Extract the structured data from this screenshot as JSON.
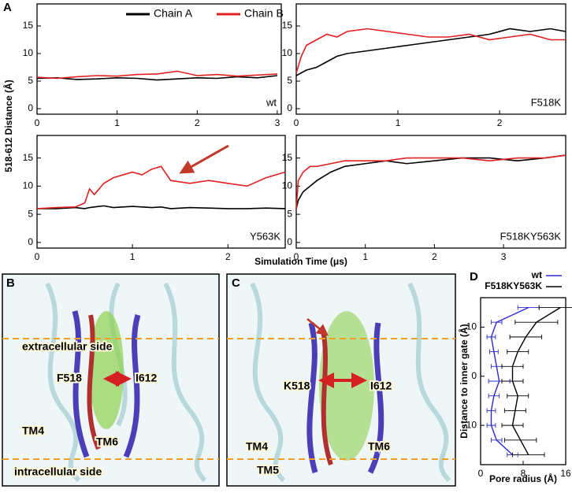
{
  "figure": {
    "label": "A",
    "ylabel": "518-612 Distance (Å)",
    "xlabel": "Simulation Time (μs)"
  },
  "chart_data": [
    {
      "type": "line",
      "annotation": "wt",
      "x": [
        0,
        0.25,
        0.5,
        0.75,
        1,
        1.25,
        1.5,
        1.75,
        2,
        2.25,
        2.5,
        2.75,
        3
      ],
      "series": [
        {
          "name": "Chain A",
          "color": "#000000",
          "values": [
            5.5,
            5.6,
            5.3,
            5.4,
            5.6,
            5.5,
            5.2,
            5.4,
            5.6,
            5.5,
            5.8,
            5.6,
            6.0
          ]
        },
        {
          "name": "Chain B",
          "color": "#e02020",
          "values": [
            5.7,
            5.5,
            5.8,
            6.0,
            5.9,
            6.2,
            6.3,
            6.8,
            6.0,
            6.2,
            5.9,
            6.1,
            6.3
          ]
        }
      ],
      "xlim": [
        0,
        3.05
      ],
      "xticks": [
        0,
        1,
        2,
        3
      ],
      "ylim": [
        -1,
        19
      ],
      "yticks": [
        0,
        5,
        10,
        15
      ]
    },
    {
      "type": "line",
      "annotation": "F518K",
      "x": [
        0,
        0.05,
        0.1,
        0.2,
        0.3,
        0.4,
        0.5,
        0.7,
        0.9,
        1.1,
        1.3,
        1.5,
        1.7,
        1.9,
        2.1,
        2.3,
        2.5,
        2.65
      ],
      "series": [
        {
          "color": "#000000",
          "values": [
            6.0,
            6.5,
            7.0,
            7.5,
            8.5,
            9.5,
            10.0,
            10.5,
            11.0,
            11.5,
            12.0,
            12.5,
            13.0,
            13.5,
            14.5,
            14.0,
            14.5,
            14.0
          ]
        },
        {
          "color": "#e02020",
          "values": [
            6.5,
            9.5,
            11.5,
            12.5,
            13.5,
            13.0,
            14.0,
            14.5,
            14.0,
            13.5,
            13.0,
            13.0,
            13.5,
            12.5,
            13.0,
            13.5,
            12.5,
            12.5
          ]
        }
      ],
      "xlim": [
        0,
        2.65
      ],
      "xticks": [
        0,
        1,
        2
      ],
      "ylim": [
        -1,
        19
      ],
      "yticks": [
        0,
        5,
        10,
        15
      ]
    },
    {
      "type": "line",
      "annotation": "Y563K",
      "x": [
        0,
        0.2,
        0.4,
        0.5,
        0.55,
        0.6,
        0.7,
        0.8,
        0.9,
        1.0,
        1.1,
        1.2,
        1.3,
        1.4,
        1.6,
        1.8,
        2.0,
        2.2,
        2.4,
        2.6
      ],
      "series": [
        {
          "color": "#000000",
          "values": [
            6,
            6,
            6.2,
            6.0,
            6.2,
            6.3,
            6.5,
            6.2,
            6.3,
            6.4,
            6.3,
            6.2,
            6.3,
            6.0,
            6.2,
            6.1,
            6.0,
            6.0,
            6.1,
            6.0
          ]
        },
        {
          "color": "#e02020",
          "values": [
            6,
            6.2,
            6.3,
            7.0,
            9.5,
            8.5,
            10.5,
            11.5,
            12.0,
            12.5,
            12.0,
            13.0,
            13.5,
            11.0,
            10.5,
            11.0,
            10.5,
            10.0,
            11.5,
            12.5
          ]
        }
      ],
      "xlim": [
        0,
        2.6
      ],
      "xticks": [
        0,
        1,
        2
      ],
      "ylim": [
        -1,
        19
      ],
      "yticks": [
        0,
        5,
        10,
        15
      ]
    },
    {
      "type": "line",
      "annotation": "F518KY563K",
      "x": [
        0,
        0.03,
        0.1,
        0.2,
        0.3,
        0.5,
        0.7,
        1.0,
        1.3,
        1.6,
        2.0,
        2.4,
        2.8,
        3.2,
        3.6,
        3.9
      ],
      "series": [
        {
          "color": "#000000",
          "values": [
            6,
            7.5,
            9,
            10,
            11,
            12.5,
            13.5,
            14,
            14.5,
            14,
            14.5,
            15,
            15,
            14.5,
            15,
            15.5
          ]
        },
        {
          "color": "#e02020",
          "values": [
            6,
            11,
            12.5,
            13.5,
            13.5,
            14,
            14.5,
            14.5,
            14.5,
            15,
            15,
            15,
            14.5,
            15,
            15,
            15.5
          ]
        }
      ],
      "xlim": [
        0,
        3.9
      ],
      "xticks": [
        0,
        1,
        2,
        3
      ],
      "ylim": [
        -1,
        19
      ],
      "yticks": [
        0,
        5,
        10,
        15
      ]
    },
    {
      "type": "profile",
      "label": "D",
      "xlabel": "Pore radius (Å)",
      "ylabel": "Distance to inner gate (Å)",
      "y": [
        -16,
        -13,
        -10,
        -7,
        -4,
        -1,
        2,
        5,
        8,
        11,
        14
      ],
      "series": [
        {
          "name": "wt",
          "color": "#2a2ad0",
          "values": [
            6,
            3,
            2,
            2,
            2.5,
            3.5,
            3,
            2.5,
            2,
            3,
            9
          ],
          "errors": [
            1,
            1,
            0.8,
            0.8,
            1,
            2,
            1,
            0.8,
            0.8,
            1,
            2
          ]
        },
        {
          "name": "F518KY563K",
          "color": "#000000",
          "values": [
            9,
            7.5,
            6,
            6.5,
            7,
            6,
            6,
            7,
            8.5,
            10.5,
            15
          ],
          "errors": [
            3,
            3,
            2,
            2,
            2,
            2,
            2,
            2,
            3,
            4,
            4
          ]
        }
      ],
      "xlim": [
        0,
        16
      ],
      "xticks": [
        0,
        8,
        16
      ],
      "ylim": [
        -18,
        16
      ],
      "yticks": [
        -10,
        0,
        10
      ]
    }
  ],
  "structures": [
    {
      "label": "B",
      "texts": [
        "extracellular side",
        "F518",
        "I612",
        "TM4",
        "TM6",
        "intracellular side"
      ]
    },
    {
      "label": "C",
      "texts": [
        "K518",
        "I612",
        "TM4",
        "TM5",
        "TM6"
      ]
    }
  ]
}
